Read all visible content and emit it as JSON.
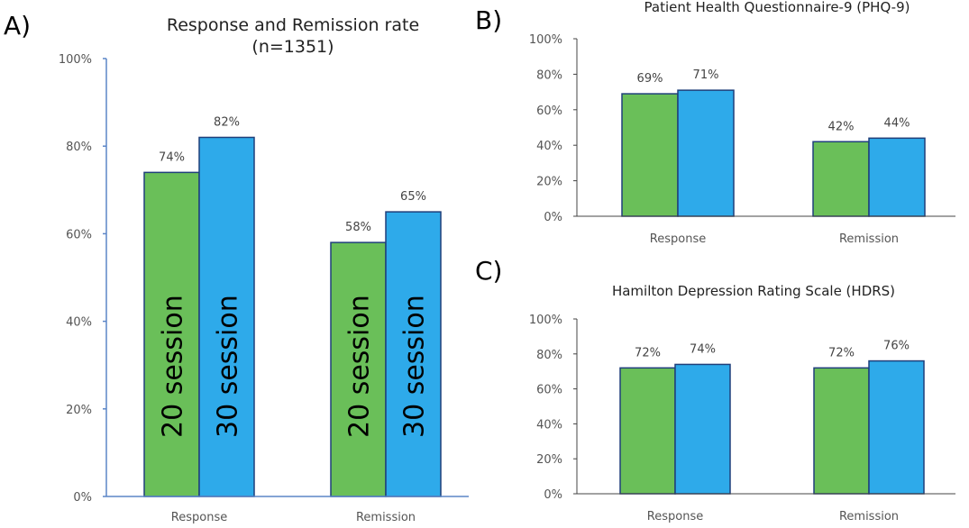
{
  "panels": [
    {
      "letter": "A)"
    },
    {
      "letter": "B)"
    },
    {
      "letter": "C)"
    }
  ],
  "chart_data": [
    {
      "type": "bar",
      "title": "Response and Remission rate",
      "subtitle": "(n=1351)",
      "categories": [
        "Response",
        "Remission"
      ],
      "series": [
        {
          "name": "20 session",
          "values": [
            74,
            58
          ],
          "color": "#6abf59",
          "labels": [
            "74%",
            "58%"
          ]
        },
        {
          "name": "30 session",
          "values": [
            82,
            65
          ],
          "color": "#2eaaea",
          "labels": [
            "82%",
            "65%"
          ]
        }
      ],
      "ylim": [
        0,
        100
      ],
      "yticks": [
        "0%",
        "20%",
        "40%",
        "60%",
        "80%",
        "100%"
      ],
      "grid": false
    },
    {
      "type": "bar",
      "title": "Patient Health Questionnaire-9 (PHQ-9)",
      "categories": [
        "Response",
        "Remission"
      ],
      "series": [
        {
          "values": [
            69,
            42
          ],
          "color": "#6abf59",
          "labels": [
            "69%",
            "42%"
          ]
        },
        {
          "values": [
            71,
            44
          ],
          "color": "#2eaaea",
          "labels": [
            "71%",
            "44%"
          ]
        }
      ],
      "ylim": [
        0,
        100
      ],
      "yticks": [
        "0%",
        "20%",
        "40%",
        "60%",
        "80%",
        "100%"
      ],
      "grid": false
    },
    {
      "type": "bar",
      "title": "Hamilton Depression Rating Scale (HDRS)",
      "categories": [
        "Response",
        "Remission"
      ],
      "series": [
        {
          "values": [
            72,
            72
          ],
          "color": "#6abf59",
          "labels": [
            "72%",
            "72%"
          ]
        },
        {
          "values": [
            74,
            76
          ],
          "color": "#2eaaea",
          "labels": [
            "74%",
            "76%"
          ]
        }
      ],
      "ylim": [
        0,
        100
      ],
      "yticks": [
        "0%",
        "20%",
        "40%",
        "60%",
        "80%",
        "100%"
      ],
      "grid": false
    }
  ]
}
